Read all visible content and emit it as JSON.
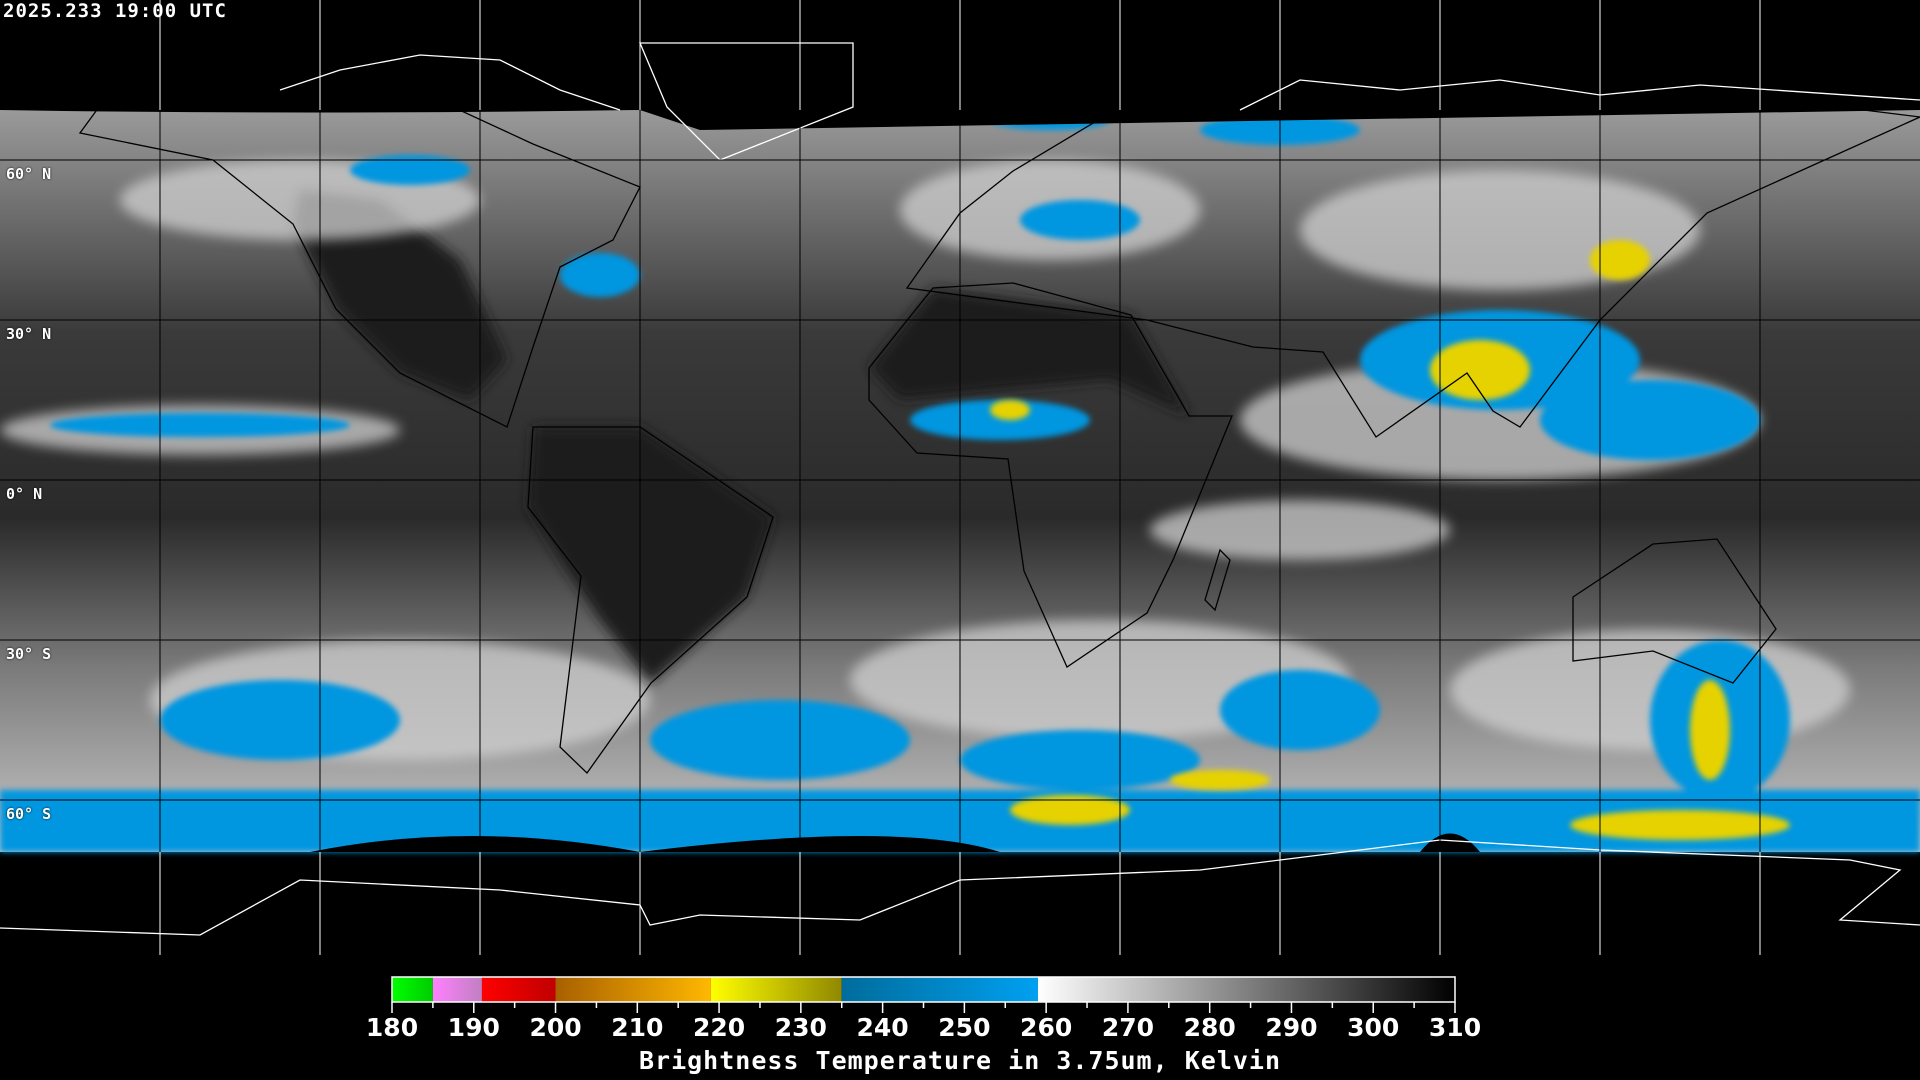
{
  "timestamp": "2025.233 19:00 UTC",
  "map": {
    "projection": "equirectangular",
    "grid_spacing_degrees": 30,
    "lat_labels": [
      "60° N",
      "30° N",
      "0° N",
      "30° S",
      "60° S"
    ],
    "coastline_color_on_image": "#000000",
    "coastline_color_outside": "#ffffff",
    "grid_color_on_image": "#000000",
    "grid_color_outside": "#ffffff"
  },
  "colorbar": {
    "title": "Brightness Temperature in 3.75um, Kelvin",
    "min": 180,
    "max": 310,
    "tick_labels": [
      "180",
      "190",
      "200",
      "210",
      "220",
      "230",
      "240",
      "250",
      "260",
      "270",
      "280",
      "290",
      "300",
      "310"
    ],
    "minor_tick_step": 5,
    "segments": [
      {
        "from": 180,
        "to": 185,
        "start_color": "#00ff00",
        "end_color": "#00cc00"
      },
      {
        "from": 185,
        "to": 191,
        "start_color": "#ff80ff",
        "end_color": "#c080c0"
      },
      {
        "from": 191,
        "to": 200,
        "start_color": "#ff0000",
        "end_color": "#c00000"
      },
      {
        "from": 200,
        "to": 219,
        "start_color": "#a86000",
        "end_color": "#ffb800"
      },
      {
        "from": 219,
        "to": 235,
        "start_color": "#ffff00",
        "end_color": "#908800"
      },
      {
        "from": 235,
        "to": 259,
        "start_color": "#006c9c",
        "end_color": "#00a0f0"
      },
      {
        "from": 259,
        "to": 310,
        "start_color": "#ffffff",
        "end_color": "#000000"
      }
    ]
  }
}
